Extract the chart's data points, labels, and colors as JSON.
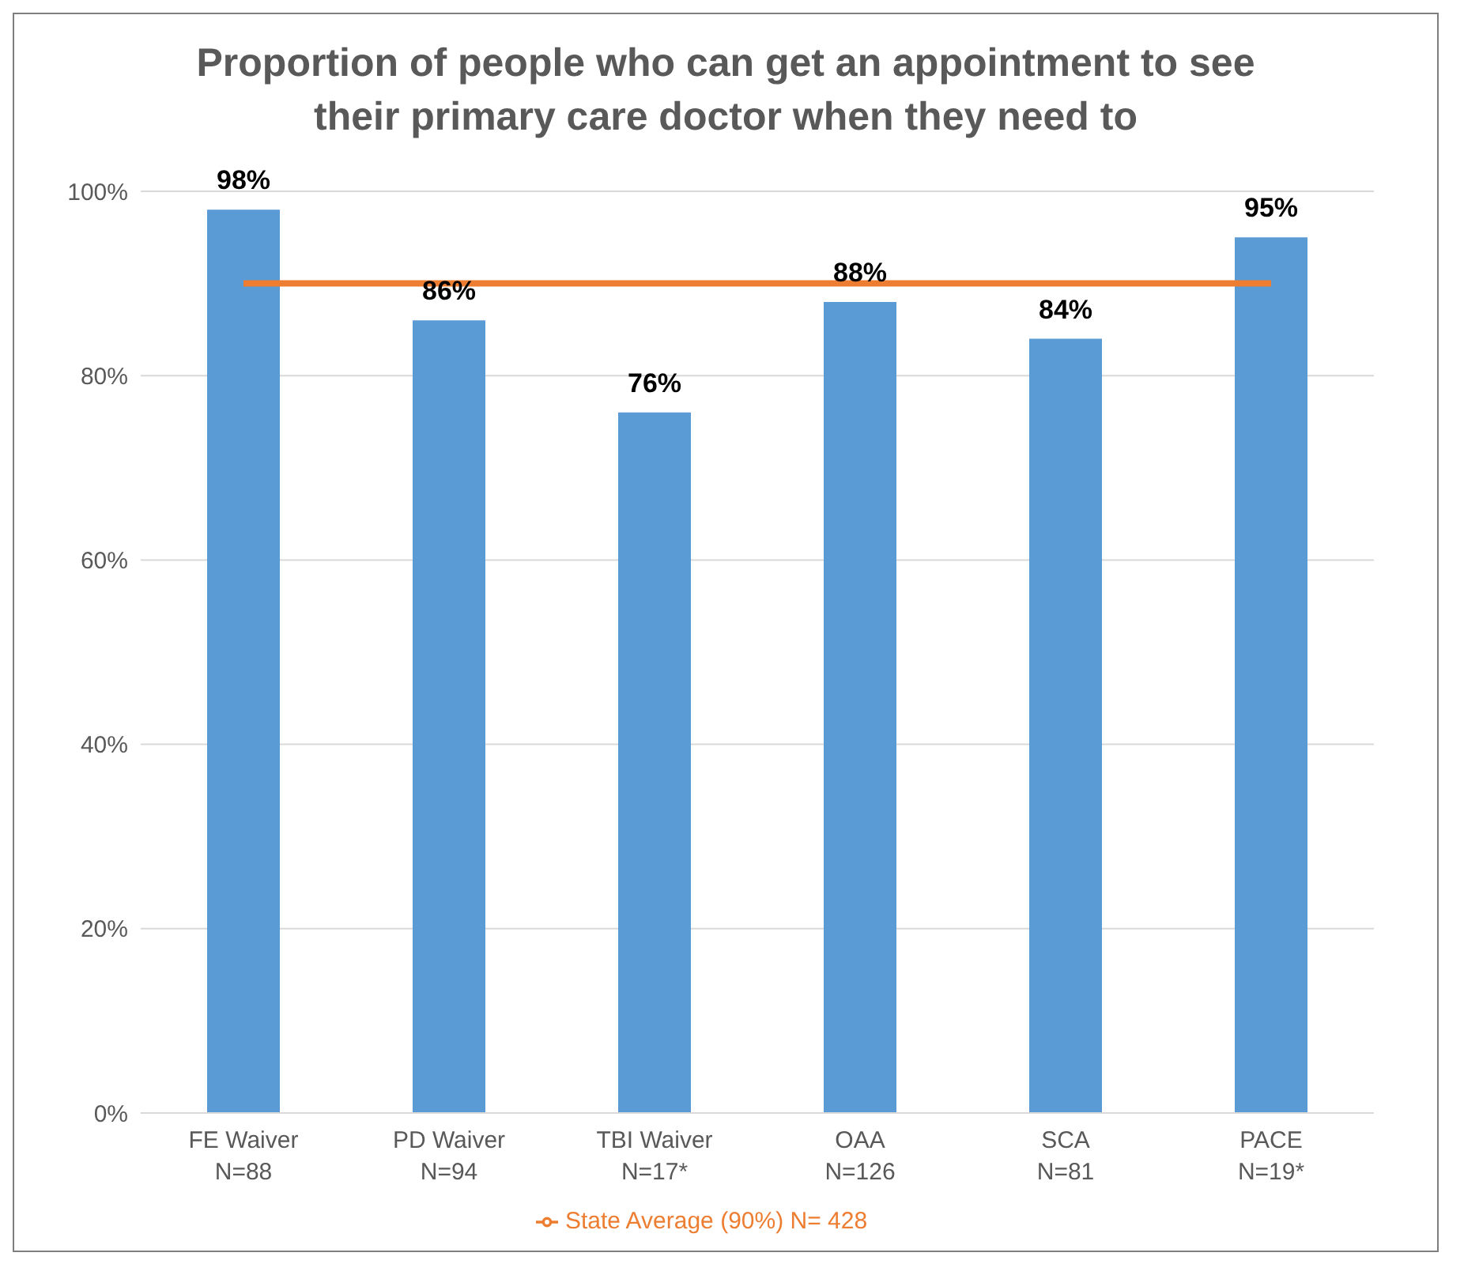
{
  "chart_data": {
    "type": "bar",
    "title": "Proportion of people who can get an appointment to see their primary care doctor when they need to",
    "categories": [
      "FE Waiver\nN=88",
      "PD Waiver\nN=94",
      "TBI Waiver\nN=17*",
      "OAA\nN=126",
      "SCA\nN=81",
      "PACE\nN=19*"
    ],
    "series": [
      {
        "color": "#5b9bd5",
        "values": [
          98,
          86,
          76,
          88,
          84,
          95
        ],
        "value_labels": [
          "98%",
          "86%",
          "76%",
          "88%",
          "84%",
          "95%"
        ]
      },
      {
        "type": "line",
        "name": "State Average (90%) N= 428",
        "color": "#ed7d31",
        "values": [
          90,
          90,
          90,
          90,
          90,
          90
        ]
      }
    ],
    "ylim": [
      0,
      100
    ],
    "yticks": [
      {
        "value": 0,
        "label": "0%"
      },
      {
        "value": 20,
        "label": "20%"
      },
      {
        "value": 40,
        "label": "40%"
      },
      {
        "value": 60,
        "label": "60%"
      },
      {
        "value": 80,
        "label": "80%"
      },
      {
        "value": 100,
        "label": "100%"
      }
    ],
    "grid": "y",
    "legend": "bottom",
    "marker": "none",
    "line_style": "solid"
  }
}
